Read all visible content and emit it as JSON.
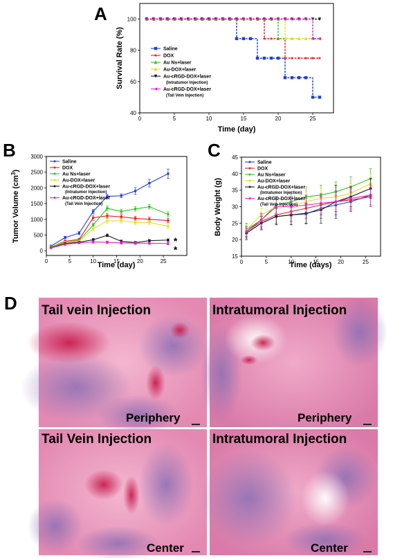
{
  "chart_data": [
    {
      "panel": "A",
      "type": "line",
      "xlabel": "Time (day)",
      "ylabel": "Survival Rate (%)",
      "xlim": [
        0,
        28
      ],
      "ylim": [
        40,
        110
      ],
      "xticks": [
        0,
        5,
        10,
        15,
        20,
        25
      ],
      "yticks": [
        40,
        60,
        80,
        100
      ],
      "grid": false,
      "legend_position": "inside-lower-left",
      "series": [
        {
          "name": "Saline",
          "color": "#1f3fd6",
          "marker": "square",
          "x": [
            1,
            2,
            3,
            4,
            5,
            6,
            7,
            8,
            9,
            10,
            11,
            12,
            13,
            14,
            15,
            16,
            17,
            18,
            19,
            20,
            21,
            22,
            23,
            24,
            25,
            26
          ],
          "y": [
            100,
            100,
            100,
            100,
            100,
            100,
            100,
            100,
            100,
            100,
            100,
            100,
            100,
            87.5,
            87.5,
            87.5,
            75,
            75,
            75,
            75,
            62.5,
            62.5,
            62.5,
            62.5,
            50,
            50
          ]
        },
        {
          "name": "DOX",
          "color": "#e02020",
          "marker": "star",
          "x": [
            1,
            2,
            3,
            4,
            5,
            6,
            7,
            8,
            9,
            10,
            11,
            12,
            13,
            14,
            15,
            16,
            17,
            18,
            19,
            20,
            21,
            22,
            23,
            24,
            25,
            26
          ],
          "y": [
            100,
            100,
            100,
            100,
            100,
            100,
            100,
            100,
            100,
            100,
            100,
            100,
            100,
            100,
            100,
            100,
            100,
            87.5,
            87.5,
            87.5,
            75,
            75,
            75,
            75,
            75,
            75
          ]
        },
        {
          "name": "Au Ns+laser",
          "color": "#2ec21e",
          "marker": "triangle",
          "x": [
            1,
            2,
            3,
            4,
            5,
            6,
            7,
            8,
            9,
            10,
            11,
            12,
            13,
            14,
            15,
            16,
            17,
            18,
            19,
            20,
            21,
            22,
            23,
            24,
            25,
            26
          ],
          "y": [
            100,
            100,
            100,
            100,
            100,
            100,
            100,
            100,
            100,
            100,
            100,
            100,
            100,
            100,
            100,
            100,
            100,
            100,
            100,
            87.5,
            87.5,
            87.5,
            87.5,
            87.5,
            87.5,
            87.5
          ]
        },
        {
          "name": "Au-DOX+laser",
          "color": "#e8dc20",
          "marker": "triangle",
          "x": [
            1,
            2,
            3,
            4,
            5,
            6,
            7,
            8,
            9,
            10,
            11,
            12,
            13,
            14,
            15,
            16,
            17,
            18,
            19,
            20,
            21,
            22,
            23,
            24,
            25,
            26
          ],
          "y": [
            100,
            100,
            100,
            100,
            100,
            100,
            100,
            100,
            100,
            100,
            100,
            100,
            100,
            100,
            100,
            100,
            100,
            100,
            100,
            100,
            87.5,
            87.5,
            87.5,
            87.5,
            87.5,
            87.5
          ]
        },
        {
          "name": "Au-cRGD-DOX+laser",
          "note": "(Intratumor Injection)",
          "color": "#1a1a1a",
          "marker": "triangle-down",
          "x": [
            1,
            2,
            3,
            4,
            5,
            6,
            7,
            8,
            9,
            10,
            11,
            12,
            13,
            14,
            15,
            16,
            17,
            18,
            19,
            20,
            21,
            22,
            23,
            24,
            25,
            26
          ],
          "y": [
            100,
            100,
            100,
            100,
            100,
            100,
            100,
            100,
            100,
            100,
            100,
            100,
            100,
            100,
            100,
            100,
            100,
            100,
            100,
            100,
            100,
            100,
            100,
            100,
            100,
            100
          ]
        },
        {
          "name": "Au-cRGD-DOX+laser",
          "note": "(Tail Vein Injection)",
          "color": "#e020d0",
          "marker": "triangle-left",
          "x": [
            1,
            2,
            3,
            4,
            5,
            6,
            7,
            8,
            9,
            10,
            11,
            12,
            13,
            14,
            15,
            16,
            17,
            18,
            19,
            20,
            21,
            22,
            23,
            24,
            25,
            26
          ],
          "y": [
            100,
            100,
            100,
            100,
            100,
            100,
            100,
            100,
            100,
            100,
            100,
            100,
            100,
            100,
            100,
            100,
            100,
            100,
            100,
            100,
            100,
            100,
            100,
            100,
            87.5,
            87.5
          ]
        }
      ]
    },
    {
      "panel": "B",
      "type": "line",
      "xlabel": "Time (day)",
      "ylabel": "Tumor Volume (cm",
      "ylabel_sup": "3",
      "ylabel_end": ")",
      "xlim": [
        0,
        30
      ],
      "ylim": [
        -150,
        3000
      ],
      "xticks": [
        0,
        5,
        10,
        15,
        20,
        25
      ],
      "yticks": [
        0,
        500,
        1000,
        1500,
        2000,
        2500,
        3000
      ],
      "grid": false,
      "legend_position": "top-left",
      "annotations": [
        "*",
        "*"
      ],
      "series": [
        {
          "name": "Saline",
          "color": "#1f3fd6",
          "x": [
            1,
            4,
            7,
            10,
            13,
            16,
            19,
            22,
            26
          ],
          "y": [
            150,
            420,
            560,
            1250,
            1730,
            1750,
            1900,
            2150,
            2450
          ],
          "err": [
            30,
            40,
            50,
            70,
            60,
            60,
            110,
            120,
            150
          ]
        },
        {
          "name": "DOX",
          "color": "#e02020",
          "x": [
            1,
            4,
            7,
            10,
            13,
            16,
            19,
            22,
            26
          ],
          "y": [
            120,
            300,
            360,
            1050,
            1110,
            1080,
            1030,
            1000,
            960
          ],
          "err": [
            30,
            40,
            40,
            80,
            70,
            70,
            70,
            70,
            70
          ]
        },
        {
          "name": "Au Ns+laser",
          "color": "#2ec21e",
          "x": [
            1,
            4,
            7,
            10,
            13,
            16,
            19,
            22,
            26
          ],
          "y": [
            130,
            260,
            330,
            820,
            1350,
            1250,
            1330,
            1400,
            1160
          ],
          "err": [
            30,
            40,
            40,
            60,
            80,
            70,
            70,
            70,
            80
          ]
        },
        {
          "name": "Au-DOX+laser",
          "color": "#e8dc20",
          "x": [
            1,
            4,
            7,
            10,
            13,
            16,
            19,
            22,
            26
          ],
          "y": [
            110,
            250,
            290,
            700,
            950,
            950,
            900,
            900,
            780
          ],
          "err": [
            30,
            40,
            40,
            60,
            70,
            70,
            70,
            70,
            80
          ]
        },
        {
          "name": "Au-cRGD-DOX+laser",
          "note": "(Intratumor Injection)",
          "color": "#1a1a1a",
          "x": [
            1,
            4,
            7,
            10,
            13,
            16,
            19,
            22,
            26
          ],
          "y": [
            100,
            230,
            270,
            350,
            490,
            300,
            260,
            320,
            340
          ],
          "err": [
            20,
            30,
            30,
            40,
            40,
            40,
            40,
            40,
            40
          ]
        },
        {
          "name": "Au-cRGD-DOX+laser",
          "note": "(Tail Vein Injection)",
          "color": "#e020d0",
          "x": [
            1,
            4,
            7,
            10,
            13,
            16,
            19,
            22,
            26
          ],
          "y": [
            90,
            200,
            250,
            280,
            270,
            250,
            240,
            240,
            230
          ],
          "err": [
            20,
            30,
            30,
            40,
            40,
            40,
            40,
            40,
            40
          ]
        }
      ]
    },
    {
      "panel": "C",
      "type": "line",
      "xlabel": "Time (days)",
      "ylabel": "Body Weight (g)",
      "xlim": [
        0,
        28
      ],
      "ylim": [
        15,
        45
      ],
      "xticks": [
        0,
        5,
        10,
        15,
        20,
        25
      ],
      "yticks": [
        15,
        20,
        25,
        30,
        35,
        40,
        45
      ],
      "grid": false,
      "legend_position": "top-left",
      "series": [
        {
          "name": "Saline",
          "color": "#1f3fd6",
          "x": [
            1,
            4,
            7,
            10,
            13,
            16,
            19,
            22,
            26
          ],
          "y": [
            22,
            25,
            27,
            27.5,
            27.8,
            29.5,
            30.5,
            31.5,
            33.5
          ],
          "err": [
            1.5,
            2,
            2.5,
            3,
            3,
            3,
            3,
            3,
            3
          ]
        },
        {
          "name": "DOX",
          "color": "#e02020",
          "x": [
            1,
            4,
            7,
            10,
            13,
            16,
            19,
            22,
            26
          ],
          "y": [
            22.5,
            25.5,
            27.5,
            28.5,
            29.5,
            30.5,
            31.5,
            32,
            33
          ],
          "err": [
            1.5,
            2,
            2.5,
            3,
            3,
            3,
            3,
            3,
            3
          ]
        },
        {
          "name": "Au Ns+laser",
          "color": "#2ec21e",
          "x": [
            1,
            4,
            7,
            10,
            13,
            16,
            19,
            22,
            26
          ],
          "y": [
            23,
            26,
            30.5,
            31.5,
            33,
            33.5,
            34.5,
            36,
            38.5
          ],
          "err": [
            2,
            2,
            2.5,
            3,
            3,
            3,
            3,
            3,
            3
          ]
        },
        {
          "name": "Au-DOX+laser",
          "color": "#e8dc20",
          "x": [
            1,
            4,
            7,
            10,
            13,
            16,
            19,
            22,
            26
          ],
          "y": [
            23,
            27.5,
            30,
            30,
            31.5,
            32.5,
            33,
            34,
            37
          ],
          "err": [
            1.5,
            2,
            2.5,
            3,
            3,
            3,
            3,
            3,
            3
          ]
        },
        {
          "name": "Au-cRGD-DOX+laser",
          "note": "(Intratumor Injection)",
          "color": "#1a1a1a",
          "x": [
            1,
            4,
            7,
            10,
            13,
            16,
            19,
            22,
            26
          ],
          "y": [
            22,
            25,
            27,
            27.5,
            28,
            29,
            31.5,
            33,
            35.5
          ],
          "err": [
            2,
            2,
            2.5,
            3,
            3,
            4,
            5,
            3,
            3
          ]
        },
        {
          "name": "Au-cRGD-DOX+laser",
          "note": "(Tail Vein Injection)",
          "color": "#e020d0",
          "x": [
            1,
            4,
            7,
            10,
            13,
            16,
            19,
            22,
            26
          ],
          "y": [
            22.5,
            26,
            30,
            30,
            30.5,
            31,
            31.5,
            32.5,
            33.5
          ],
          "err": [
            1.5,
            2,
            2.5,
            3,
            3,
            3,
            3,
            3,
            3
          ]
        }
      ]
    }
  ],
  "panels": {
    "A": "A",
    "B": "B",
    "C": "C",
    "D": "D"
  },
  "histology": [
    {
      "title": "Tail vein Injection",
      "location": "Periphery",
      "label_color": "#3a3aff"
    },
    {
      "title": "Intratumoral Injection",
      "location": "Periphery",
      "label_color": "#3a3aff"
    },
    {
      "title": "Tail Vein Injection",
      "location": "Center",
      "label_color": "#3a3aff"
    },
    {
      "title": "Intratumoral Injection",
      "location": "Center",
      "label_color": "#3a3aff"
    }
  ]
}
